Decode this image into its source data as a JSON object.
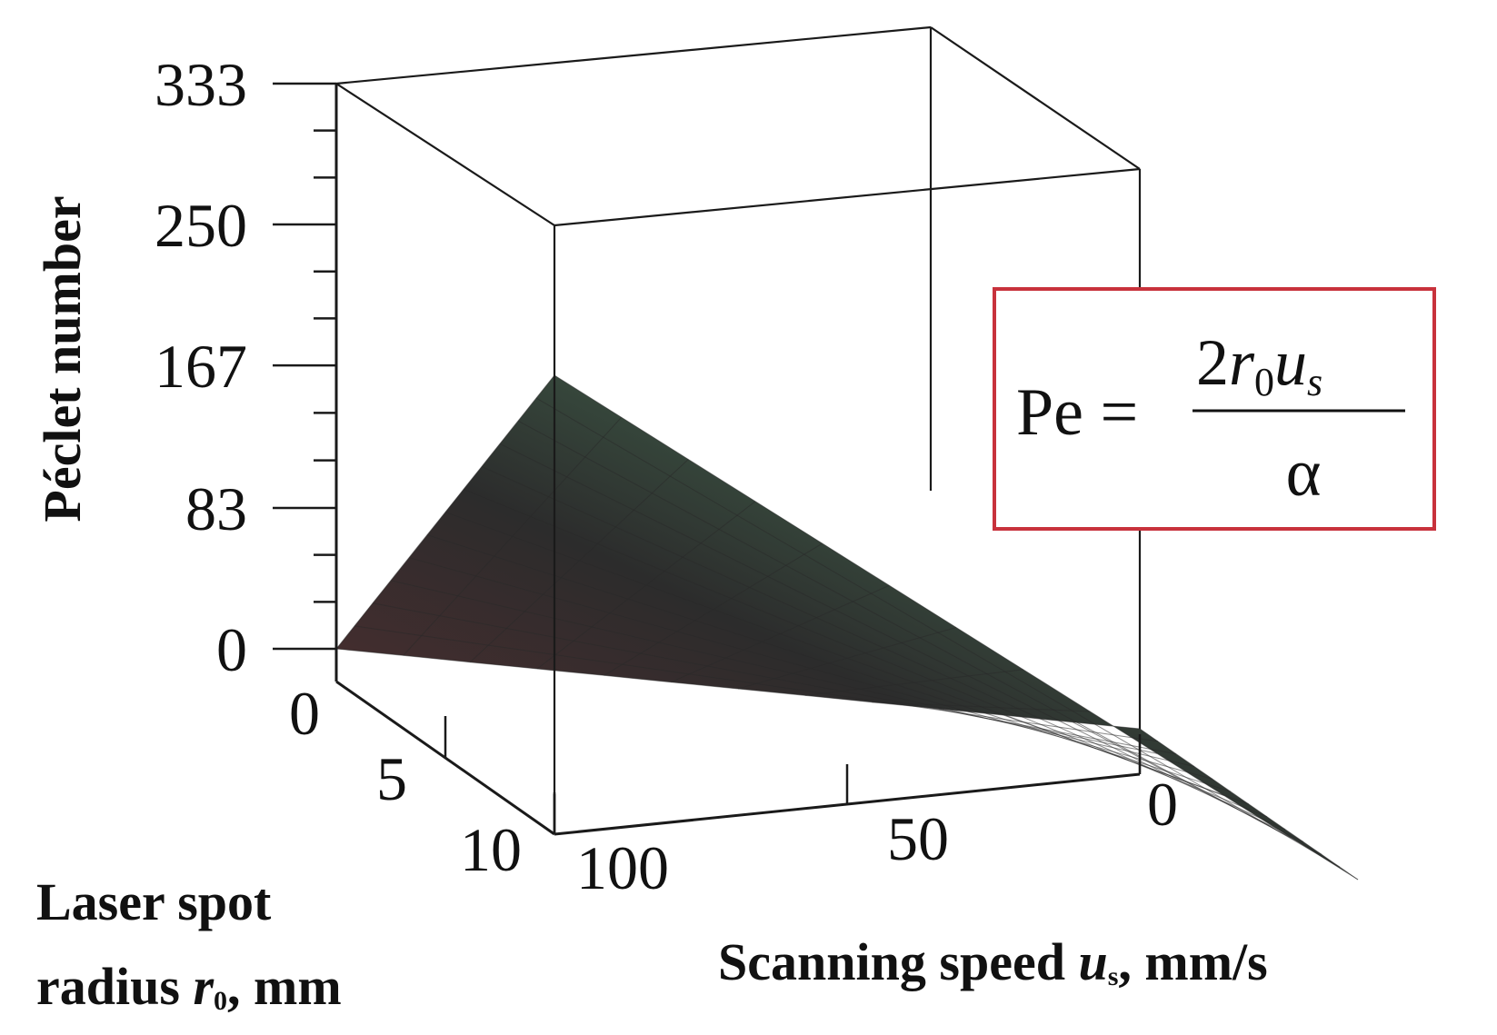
{
  "chart_data": {
    "type": "surface",
    "zlabel": "Péclet number",
    "xlabel_line1": "Laser spot",
    "xlabel_line2_pre": "radius ",
    "xlabel_var": "r",
    "xlabel_sub": "0",
    "xlabel_line2_post": ", mm",
    "ylabel_pre": "Scanning speed ",
    "ylabel_var": "u",
    "ylabel_sub": "s",
    "ylabel_post": ", mm/s",
    "z_ticks": [
      "0",
      "83",
      "167",
      "250",
      "333"
    ],
    "z_values": [
      0,
      83,
      167,
      250,
      333
    ],
    "zlim": [
      0,
      333
    ],
    "r_ticks": [
      "0",
      "5",
      "10"
    ],
    "r_values": [
      0,
      5,
      10
    ],
    "rlim": [
      0,
      10
    ],
    "u_ticks": [
      "0",
      "50",
      "100"
    ],
    "u_values": [
      0,
      50,
      100
    ],
    "ulim": [
      0,
      100
    ],
    "formula": {
      "lhs": "Pe =",
      "numerator_coef": "2",
      "numerator_r": "r",
      "numerator_r_sub": "0",
      "numerator_u": "u",
      "numerator_u_sub": "s",
      "denominator": "α"
    },
    "surface": {
      "function": "Pe = 2 * r0 * us / alpha",
      "corner_values": [
        {
          "r": 0,
          "u": 0,
          "pe": 0
        },
        {
          "r": 10,
          "u": 0,
          "pe": 0
        },
        {
          "r": 0,
          "u": 100,
          "pe": 0
        },
        {
          "r": 10,
          "u": 100,
          "pe": 250
        }
      ],
      "grid_steps": 12,
      "color_low": "#5a2e30",
      "color_mid": "#2c2c2c",
      "color_high": "#4f8a62"
    },
    "colors": {
      "formula_border": "#c8323c"
    }
  }
}
